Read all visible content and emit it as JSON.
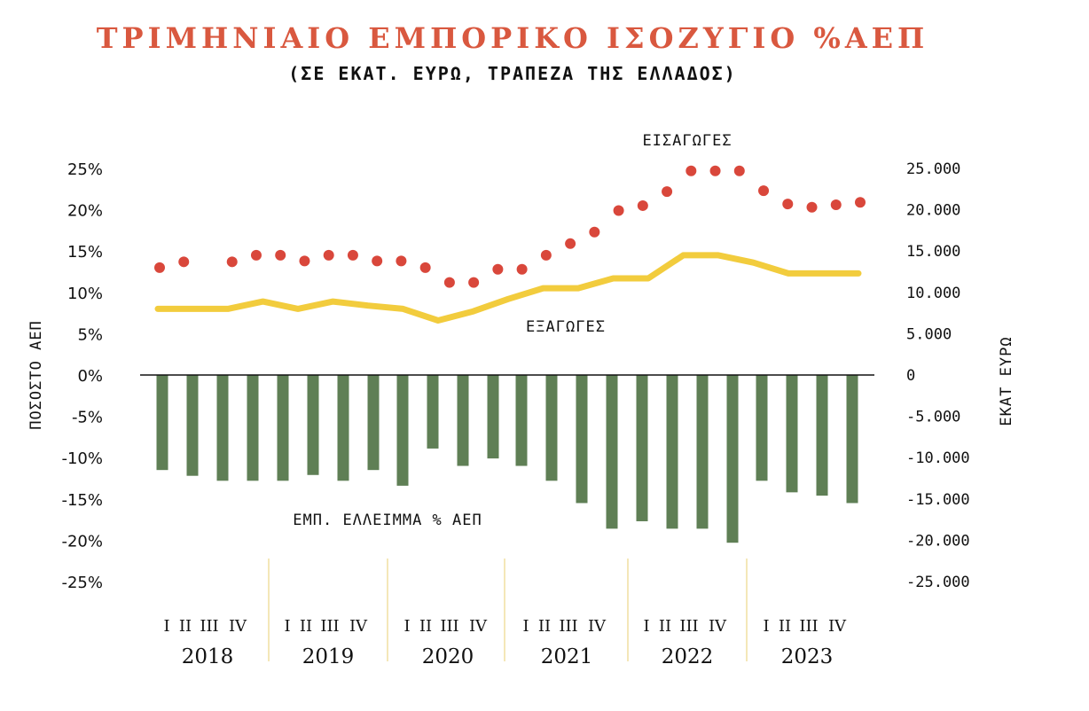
{
  "chart_data": {
    "type": "bar+line+scatter",
    "title": "ΤΡΙΜΗΝΙΑΙΟ ΕΜΠΟΡΙΚΟ ΙΣΟΖΥΓΙΟ %ΑΕΠ",
    "subtitle": "(ΣΕ ΕΚΑΤ. ΕΥΡΩ, ΤΡΑΠΕΖΑ ΤΗΣ ΕΛΛΑΔΟΣ)",
    "left_axis_label": "ΠΟΣΟΣΤΟ ΑΕΠ",
    "right_axis_label": "ΕΚΑΤ ΕΥΡΩ",
    "left_ticks": [
      "25%",
      "20%",
      "15%",
      "10%",
      "5%",
      "0%",
      "-5%",
      "-10%",
      "-15%",
      "-20%",
      "-25%"
    ],
    "right_ticks": [
      "25.000",
      "20.000",
      "15.000",
      "10.000",
      "5.000",
      "0",
      "-5.000",
      "-10.000",
      "-15.000",
      "-20.000",
      "-25.000"
    ],
    "left_ylim": [
      -25,
      25
    ],
    "right_ylim": [
      -25000,
      25000
    ],
    "years": [
      "2018",
      "2019",
      "2020",
      "2021",
      "2022",
      "2023"
    ],
    "quarters": [
      "I",
      "II",
      "III",
      "IV"
    ],
    "colors": {
      "imports": "#d9473b",
      "exports": "#f2cc3d",
      "deficit": "#5f7f55",
      "title": "#d9583f",
      "separator": "#f0dfa0"
    },
    "series": [
      {
        "name": "ΕΙΣΑΓΩΓΕΣ",
        "axis": "right",
        "style": "dots",
        "values": [
          13000,
          13700,
          null,
          13700,
          14500,
          14500,
          13800,
          14500,
          14500,
          13800,
          13800,
          13000,
          11200,
          11200,
          12800,
          12800,
          14500,
          15900,
          17300,
          19900,
          20500,
          22200,
          24700,
          24700,
          24700,
          22300,
          20700,
          20300,
          20600,
          20900
        ]
      },
      {
        "name": "ΕΞΑΓΩΓΕΣ",
        "axis": "right",
        "style": "line",
        "values": [
          8000,
          8000,
          8000,
          8900,
          8000,
          8900,
          8400,
          8000,
          6600,
          7700,
          9200,
          10500,
          10500,
          11700,
          11700,
          14500,
          14500,
          13600,
          12300,
          12300,
          12300
        ]
      },
      {
        "name": "ΕΜΠ. ΕΛΛΕΙΜΜΑ % ΑΕΠ",
        "axis": "left",
        "style": "bars",
        "values": [
          -11.5,
          -12.2,
          -12.8,
          -12.8,
          -12.8,
          -12.1,
          -12.8,
          -11.5,
          -13.4,
          -8.9,
          -11.0,
          -10.1,
          -11.0,
          -12.8,
          -15.5,
          -18.6,
          -17.7,
          -18.6,
          -18.6,
          -20.3,
          -12.8,
          -14.2,
          -14.6,
          -15.5
        ]
      }
    ],
    "annotations": [
      {
        "text": "ΕΙΣΑΓΩΓΕΣ",
        "series": "ΕΙΣΑΓΩΓΕΣ"
      },
      {
        "text": "ΕΞΑΓΩΓΕΣ",
        "series": "ΕΞΑΓΩΓΕΣ"
      },
      {
        "text": "ΕΜΠ. ΕΛΛΕΙΜΜΑ % ΑΕΠ",
        "series": "ΕΜΠ. ΕΛΛΕΙΜΜΑ % ΑΕΠ"
      }
    ]
  }
}
